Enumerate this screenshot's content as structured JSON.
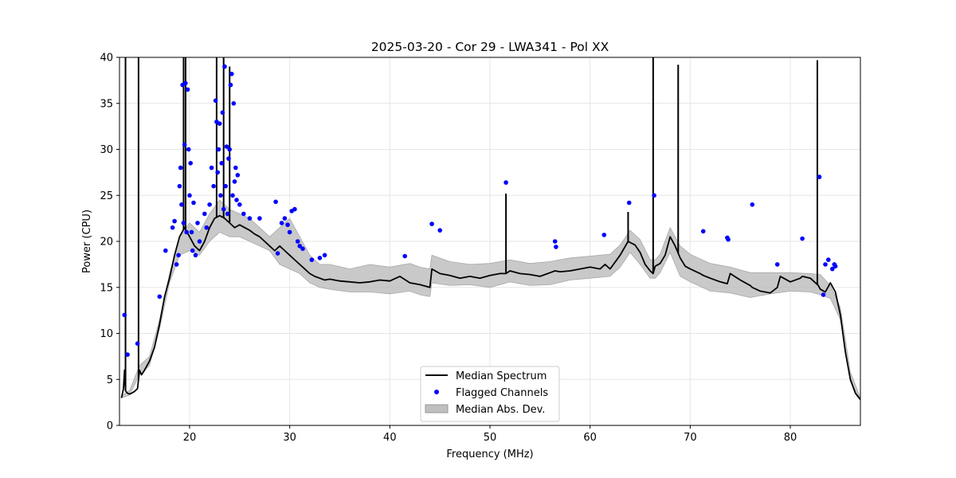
{
  "chart_data": {
    "type": "line",
    "title": "2025-03-20 - Cor 29 - LWA341 - Pol XX",
    "xlabel": "Frequency (MHz)",
    "ylabel": "Power (CPU)",
    "xlim": [
      13.0,
      87.0
    ],
    "ylim": [
      0,
      40
    ],
    "xticks": [
      20,
      30,
      40,
      50,
      60,
      70,
      80
    ],
    "yticks": [
      0,
      5,
      10,
      15,
      20,
      25,
      30,
      35,
      40
    ],
    "grid": true,
    "legend_position": "lower-center",
    "legend": [
      "Median Spectrum",
      "Flagged Channels",
      "Median Abs. Dev."
    ],
    "colors": {
      "median": "#000000",
      "flagged": "#0000ff",
      "mad_fill": "#bfbfbf"
    },
    "series": [
      {
        "name": "Median Spectrum",
        "x": [
          13.2,
          13.4,
          13.5,
          13.6,
          13.7,
          13.8,
          14.0,
          14.2,
          14.5,
          14.8,
          14.9,
          15.0,
          15.2,
          15.5,
          16.0,
          16.5,
          17.0,
          17.5,
          18.0,
          18.5,
          19.0,
          19.5,
          20.0,
          20.5,
          21.0,
          21.5,
          22.0,
          22.5,
          23.0,
          23.5,
          24.0,
          24.5,
          25.0,
          25.5,
          26.0,
          26.5,
          27.0,
          27.5,
          28.0,
          28.5,
          29.0,
          29.5,
          30.0,
          30.5,
          31.0,
          31.5,
          32.0,
          32.5,
          33.0,
          33.5,
          34.0,
          35.0,
          36.0,
          37.0,
          38.0,
          39.0,
          40.0,
          41.0,
          42.0,
          43.0,
          44.0,
          44.2,
          45.0,
          46.0,
          47.0,
          48.0,
          49.0,
          50.0,
          51.0,
          51.6,
          52.0,
          53.0,
          54.0,
          55.0,
          56.0,
          56.5,
          57.0,
          58.0,
          59.0,
          60.0,
          61.0,
          61.5,
          62.0,
          63.0,
          63.8,
          64.5,
          65.0,
          65.5,
          66.0,
          66.3,
          66.5,
          67.0,
          67.5,
          68.0,
          68.5,
          69.0,
          69.5,
          70.0,
          71.0,
          71.3,
          72.0,
          73.0,
          73.7,
          74.0,
          75.0,
          76.0,
          76.2,
          77.0,
          78.0,
          78.7,
          79.0,
          80.0,
          81.0,
          81.2,
          82.0,
          82.8,
          83.0,
          83.5,
          84.0,
          84.5,
          85.0,
          85.5,
          86.0,
          86.5,
          87.0
        ],
        "y": [
          3.0,
          4.0,
          6.0,
          3.8,
          3.6,
          3.5,
          3.4,
          3.5,
          3.7,
          4.0,
          5.0,
          6.0,
          5.5,
          6.0,
          7.0,
          8.5,
          11.0,
          14.0,
          16.0,
          18.5,
          20.5,
          21.5,
          20.5,
          19.5,
          19.0,
          20.0,
          21.5,
          22.5,
          22.8,
          22.5,
          22.0,
          21.5,
          21.8,
          21.5,
          21.2,
          20.8,
          20.5,
          20.0,
          19.5,
          19.0,
          19.5,
          19.0,
          18.5,
          18.0,
          17.5,
          17.0,
          16.5,
          16.2,
          16.0,
          15.8,
          15.9,
          15.7,
          15.6,
          15.5,
          15.6,
          15.8,
          15.7,
          16.2,
          15.5,
          15.3,
          15.0,
          17.0,
          16.5,
          16.3,
          16.0,
          16.2,
          16.0,
          16.3,
          16.5,
          16.5,
          16.8,
          16.5,
          16.4,
          16.2,
          16.6,
          16.8,
          16.7,
          16.8,
          17.0,
          17.2,
          17.0,
          17.5,
          17.0,
          18.5,
          20.0,
          19.6,
          18.8,
          17.5,
          16.8,
          16.5,
          17.3,
          17.6,
          18.5,
          20.5,
          19.5,
          18.2,
          17.3,
          17.0,
          16.5,
          16.3,
          16.0,
          15.6,
          15.4,
          16.5,
          15.8,
          15.2,
          15.0,
          14.6,
          14.4,
          15.0,
          16.2,
          15.6,
          16.0,
          16.2,
          16.0,
          15.2,
          14.8,
          14.5,
          15.5,
          14.5,
          12.0,
          8.0,
          5.0,
          3.5,
          2.8
        ]
      },
      {
        "name": "Median Abs. Dev.",
        "x": [
          13.2,
          14.0,
          15.0,
          16.0,
          17.0,
          18.0,
          19.0,
          20.0,
          21.0,
          22.0,
          23.0,
          24.0,
          25.0,
          26.0,
          27.0,
          28.0,
          29.0,
          30.0,
          31.0,
          32.0,
          33.0,
          34.0,
          36.0,
          38.0,
          40.0,
          42.0,
          43.0,
          44.0,
          44.2,
          46.0,
          48.0,
          50.0,
          52.0,
          54.0,
          56.0,
          58.0,
          60.0,
          62.0,
          63.0,
          64.0,
          65.0,
          66.0,
          66.5,
          67.0,
          68.0,
          69.0,
          70.0,
          72.0,
          74.0,
          76.0,
          78.0,
          80.0,
          82.0,
          83.0,
          84.0,
          85.0,
          86.0,
          87.0
        ],
        "lower": [
          3.0,
          3.3,
          5.5,
          6.5,
          10.5,
          15.5,
          18.5,
          19.0,
          18.5,
          20.0,
          21.0,
          20.5,
          20.5,
          20.0,
          19.5,
          19.0,
          17.5,
          17.0,
          16.5,
          15.5,
          15.0,
          14.8,
          14.5,
          14.5,
          14.3,
          14.6,
          14.2,
          14.0,
          15.5,
          15.2,
          15.3,
          15.0,
          15.6,
          15.2,
          15.3,
          15.8,
          16.0,
          16.2,
          17.2,
          18.8,
          17.5,
          16.0,
          16.0,
          16.6,
          18.8,
          16.2,
          15.6,
          14.6,
          14.4,
          13.9,
          14.3,
          14.6,
          14.5,
          14.2,
          13.8,
          11.5,
          4.8,
          2.8
        ],
        "upper": [
          3.2,
          3.8,
          6.5,
          7.5,
          11.5,
          16.5,
          20.5,
          22.0,
          21.0,
          23.0,
          24.5,
          23.5,
          23.0,
          22.5,
          21.5,
          20.5,
          21.5,
          22.5,
          20.5,
          18.5,
          17.5,
          17.5,
          17.0,
          17.5,
          17.2,
          17.6,
          17.2,
          17.0,
          18.5,
          17.8,
          17.5,
          17.6,
          18.0,
          17.6,
          17.8,
          18.2,
          18.4,
          18.6,
          19.6,
          21.2,
          20.2,
          18.0,
          18.0,
          18.6,
          21.5,
          19.5,
          18.6,
          17.6,
          17.2,
          16.6,
          16.6,
          16.6,
          16.5,
          16.4,
          15.2,
          12.8,
          5.8,
          3.0
        ]
      }
    ],
    "spikes": [
      {
        "x": 13.6,
        "y": 40
      },
      {
        "x": 14.9,
        "y": 40
      },
      {
        "x": 19.4,
        "y": 40
      },
      {
        "x": 19.6,
        "y": 40
      },
      {
        "x": 22.7,
        "y": 40
      },
      {
        "x": 23.4,
        "y": 40
      },
      {
        "x": 24.0,
        "y": 39
      },
      {
        "x": 51.6,
        "y": 25.2
      },
      {
        "x": 63.8,
        "y": 23.2
      },
      {
        "x": 66.3,
        "y": 40
      },
      {
        "x": 68.8,
        "y": 39.2
      },
      {
        "x": 82.7,
        "y": 39.7
      }
    ],
    "flagged": {
      "x": [
        13.5,
        13.8,
        14.8,
        17.0,
        17.6,
        18.3,
        18.5,
        18.7,
        18.9,
        19.0,
        19.1,
        19.2,
        19.3,
        19.4,
        19.5,
        19.6,
        19.7,
        19.8,
        19.9,
        20.0,
        20.1,
        20.2,
        20.3,
        20.4,
        20.6,
        20.8,
        21.0,
        21.5,
        21.7,
        22.0,
        22.2,
        22.4,
        22.6,
        22.7,
        22.8,
        22.9,
        23.0,
        23.1,
        23.2,
        23.3,
        23.4,
        23.5,
        23.6,
        23.7,
        23.8,
        23.9,
        24.0,
        24.1,
        24.2,
        24.3,
        24.4,
        24.5,
        24.6,
        24.7,
        24.8,
        25.0,
        25.4,
        26.0,
        27.0,
        28.6,
        28.8,
        29.2,
        29.5,
        29.8,
        30.0,
        30.2,
        30.5,
        30.8,
        31.0,
        31.3,
        32.2,
        33.0,
        33.5,
        41.5,
        44.2,
        45.0,
        51.6,
        56.5,
        56.6,
        61.4,
        63.9,
        66.4,
        71.3,
        73.7,
        73.8,
        76.2,
        78.7,
        81.2,
        82.9,
        83.3,
        83.5,
        83.8,
        84.2,
        84.4,
        84.5
      ],
      "y": [
        12.0,
        7.7,
        8.9,
        14.0,
        19.0,
        21.5,
        22.2,
        17.5,
        18.5,
        26.0,
        28.0,
        24.0,
        37.0,
        22.0,
        30.5,
        37.2,
        21.0,
        36.5,
        30.0,
        25.0,
        28.5,
        21.0,
        19.0,
        24.2,
        18.5,
        22.0,
        20.0,
        23.0,
        21.5,
        24.0,
        28.0,
        26.0,
        35.3,
        33.0,
        27.5,
        30.0,
        32.8,
        25.0,
        28.5,
        34.0,
        23.5,
        39.0,
        26.0,
        30.3,
        23.0,
        29.0,
        30.0,
        37.0,
        38.2,
        25.0,
        35.0,
        26.5,
        28.0,
        24.5,
        27.2,
        24.0,
        23.0,
        22.5,
        22.5,
        24.3,
        18.7,
        22.0,
        22.5,
        21.8,
        21.0,
        23.3,
        23.5,
        20.0,
        19.5,
        19.2,
        18.0,
        18.2,
        18.5,
        18.4,
        21.9,
        21.2,
        26.4,
        20.0,
        19.4,
        20.7,
        24.2,
        25.0,
        21.1,
        20.4,
        20.2,
        24.0,
        17.5,
        20.3,
        27.0,
        14.2,
        17.5,
        18.0,
        17.0,
        17.5,
        17.3
      ]
    }
  }
}
